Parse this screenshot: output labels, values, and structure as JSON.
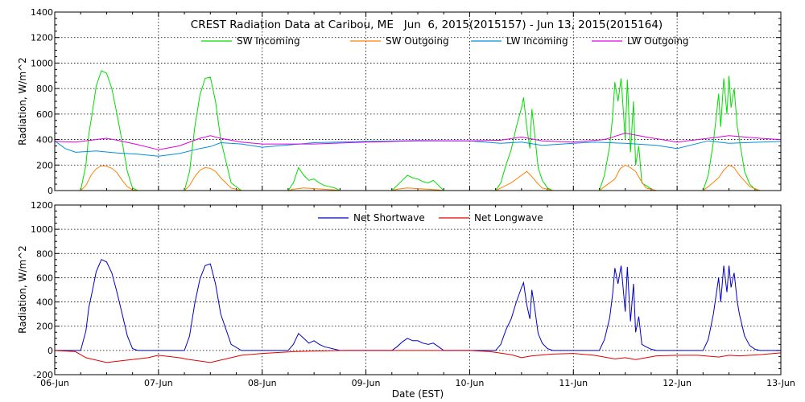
{
  "chart_data": [
    {
      "type": "line",
      "title": "CREST Radiation Data at Caribou, ME   Jun  6, 2015(2015157) - Jun 13, 2015(2015164)",
      "ylabel": "Radiation, W/m^2",
      "xlabel": "",
      "xlim": [
        0,
        7
      ],
      "ylim": [
        0,
        1400
      ],
      "yticks": [
        "0",
        "200",
        "400",
        "600",
        "800",
        "1000",
        "1200",
        "1400"
      ],
      "xtick_labels": [],
      "grid": true,
      "legend_placement": "top",
      "series": [
        {
          "name": "SW Incoming",
          "color": "#00dd00",
          "x": [
            0.0,
            0.25,
            0.3,
            0.33,
            0.36,
            0.4,
            0.45,
            0.5,
            0.55,
            0.6,
            0.65,
            0.7,
            0.75,
            0.8,
            1.0,
            1.25,
            1.3,
            1.35,
            1.4,
            1.45,
            1.5,
            1.55,
            1.6,
            1.7,
            1.8,
            2.0,
            2.25,
            2.3,
            2.35,
            2.4,
            2.45,
            2.5,
            2.55,
            2.6,
            2.65,
            2.7,
            2.75,
            3.0,
            3.25,
            3.3,
            3.35,
            3.4,
            3.45,
            3.5,
            3.55,
            3.6,
            3.65,
            3.7,
            3.75,
            4.0,
            4.25,
            4.3,
            4.35,
            4.4,
            4.45,
            4.5,
            4.52,
            4.55,
            4.58,
            4.6,
            4.63,
            4.66,
            4.7,
            4.75,
            4.8,
            5.0,
            5.25,
            5.3,
            5.35,
            5.38,
            5.4,
            5.43,
            5.46,
            5.5,
            5.52,
            5.55,
            5.58,
            5.6,
            5.63,
            5.66,
            5.7,
            5.75,
            5.8,
            6.0,
            6.25,
            6.3,
            6.35,
            6.38,
            6.4,
            6.42,
            6.45,
            6.48,
            6.5,
            6.52,
            6.55,
            6.58,
            6.6,
            6.65,
            6.7,
            6.75,
            6.8,
            6.85,
            7.0
          ],
          "y": [
            0,
            0,
            200,
            450,
            600,
            820,
            940,
            920,
            800,
            600,
            380,
            150,
            20,
            0,
            0,
            0,
            150,
            500,
            750,
            880,
            890,
            700,
            400,
            60,
            0,
            0,
            0,
            60,
            180,
            120,
            80,
            90,
            60,
            40,
            30,
            20,
            0,
            0,
            0,
            40,
            80,
            120,
            100,
            90,
            70,
            60,
            80,
            40,
            0,
            0,
            0,
            60,
            200,
            320,
            500,
            650,
            730,
            500,
            330,
            640,
            420,
            180,
            80,
            20,
            0,
            0,
            0,
            120,
            350,
            600,
            850,
            700,
            880,
            400,
            870,
            300,
            700,
            200,
            350,
            60,
            40,
            10,
            0,
            0,
            0,
            120,
            380,
            600,
            760,
            500,
            880,
            600,
            900,
            650,
            800,
            500,
            400,
            150,
            50,
            10,
            0,
            0,
            0
          ]
        },
        {
          "name": "SW Outgoing",
          "color": "#ff8000",
          "x": [
            0.0,
            0.25,
            0.3,
            0.35,
            0.4,
            0.45,
            0.5,
            0.55,
            0.6,
            0.65,
            0.7,
            0.75,
            0.8,
            1.0,
            1.25,
            1.3,
            1.35,
            1.4,
            1.45,
            1.5,
            1.55,
            1.6,
            1.7,
            1.8,
            2.0,
            2.25,
            2.3,
            2.4,
            2.5,
            2.6,
            2.7,
            2.75,
            3.0,
            3.25,
            3.3,
            3.4,
            3.5,
            3.6,
            3.7,
            3.75,
            4.0,
            4.25,
            4.3,
            4.4,
            4.5,
            4.55,
            4.6,
            4.65,
            4.7,
            4.8,
            5.0,
            5.25,
            5.3,
            5.4,
            5.45,
            5.5,
            5.55,
            5.6,
            5.65,
            5.7,
            5.8,
            6.0,
            6.25,
            6.3,
            6.4,
            6.45,
            6.5,
            6.55,
            6.6,
            6.7,
            6.8,
            7.0
          ],
          "y": [
            0,
            0,
            40,
            120,
            170,
            195,
            190,
            175,
            140,
            80,
            30,
            5,
            0,
            0,
            0,
            40,
            110,
            160,
            180,
            175,
            150,
            100,
            20,
            0,
            0,
            0,
            10,
            20,
            15,
            10,
            5,
            0,
            0,
            0,
            10,
            20,
            15,
            10,
            5,
            0,
            0,
            0,
            20,
            60,
            120,
            150,
            110,
            60,
            20,
            0,
            0,
            0,
            30,
            90,
            170,
            200,
            180,
            150,
            80,
            20,
            0,
            0,
            0,
            30,
            100,
            160,
            200,
            180,
            120,
            30,
            0,
            0
          ]
        },
        {
          "name": "LW Incoming",
          "color": "#0090e0",
          "x": [
            0.0,
            0.1,
            0.2,
            0.4,
            0.6,
            0.8,
            1.0,
            1.2,
            1.4,
            1.5,
            1.6,
            1.8,
            2.0,
            2.5,
            3.0,
            3.5,
            4.0,
            4.3,
            4.5,
            4.7,
            5.0,
            5.2,
            5.5,
            5.8,
            6.0,
            6.3,
            6.5,
            6.8,
            7.0
          ],
          "y": [
            390,
            330,
            300,
            310,
            295,
            285,
            270,
            290,
            330,
            345,
            375,
            365,
            340,
            375,
            385,
            392,
            390,
            370,
            380,
            355,
            370,
            380,
            370,
            355,
            330,
            390,
            370,
            380,
            385
          ]
        },
        {
          "name": "LW Outgoing",
          "color": "#e000e0",
          "x": [
            0.0,
            0.2,
            0.4,
            0.5,
            0.6,
            0.8,
            1.0,
            1.2,
            1.4,
            1.5,
            1.6,
            1.8,
            2.0,
            2.5,
            3.0,
            3.5,
            4.0,
            4.3,
            4.5,
            4.7,
            5.0,
            5.3,
            5.5,
            5.7,
            6.0,
            6.2,
            6.5,
            6.8,
            7.0
          ],
          "y": [
            385,
            380,
            400,
            410,
            395,
            360,
            320,
            350,
            410,
            430,
            410,
            380,
            365,
            365,
            380,
            390,
            390,
            395,
            420,
            390,
            380,
            400,
            450,
            420,
            380,
            400,
            430,
            410,
            400
          ]
        }
      ]
    },
    {
      "type": "line",
      "title": "",
      "ylabel": "Radiation, W/m^2",
      "xlabel": "Date (EST)",
      "xlim": [
        0,
        7
      ],
      "ylim": [
        -200,
        1200
      ],
      "yticks": [
        "-200",
        "0",
        "200",
        "400",
        "600",
        "800",
        "1000",
        "1200"
      ],
      "xtick_labels": [
        "06-Jun",
        "07-Jun",
        "08-Jun",
        "09-Jun",
        "10-Jun",
        "11-Jun",
        "12-Jun",
        "13-Jun"
      ],
      "grid": true,
      "legend_placement": "top",
      "series": [
        {
          "name": "Net Shortwave",
          "color": "#0000c8",
          "x": [
            0.0,
            0.25,
            0.3,
            0.33,
            0.36,
            0.4,
            0.45,
            0.5,
            0.55,
            0.6,
            0.65,
            0.7,
            0.75,
            0.8,
            1.0,
            1.25,
            1.3,
            1.35,
            1.4,
            1.45,
            1.5,
            1.55,
            1.6,
            1.7,
            1.8,
            2.0,
            2.25,
            2.3,
            2.35,
            2.4,
            2.45,
            2.5,
            2.55,
            2.6,
            2.65,
            2.7,
            2.75,
            3.0,
            3.25,
            3.3,
            3.35,
            3.4,
            3.45,
            3.5,
            3.55,
            3.6,
            3.65,
            3.7,
            3.75,
            4.0,
            4.25,
            4.3,
            4.35,
            4.4,
            4.45,
            4.5,
            4.52,
            4.55,
            4.58,
            4.6,
            4.63,
            4.66,
            4.7,
            4.75,
            4.8,
            5.0,
            5.25,
            5.3,
            5.35,
            5.38,
            5.4,
            5.43,
            5.46,
            5.5,
            5.52,
            5.55,
            5.58,
            5.6,
            5.63,
            5.66,
            5.7,
            5.75,
            5.8,
            6.0,
            6.25,
            6.3,
            6.35,
            6.38,
            6.4,
            6.42,
            6.45,
            6.48,
            6.5,
            6.52,
            6.55,
            6.58,
            6.6,
            6.65,
            6.7,
            6.75,
            6.8,
            6.85,
            7.0
          ],
          "y": [
            0,
            0,
            160,
            360,
            480,
            650,
            750,
            730,
            640,
            480,
            300,
            120,
            15,
            0,
            0,
            0,
            120,
            390,
            590,
            700,
            715,
            550,
            300,
            50,
            0,
            0,
            0,
            50,
            140,
            100,
            60,
            80,
            50,
            30,
            20,
            10,
            0,
            0,
            0,
            30,
            70,
            100,
            80,
            80,
            60,
            50,
            60,
            30,
            0,
            0,
            0,
            50,
            170,
            260,
            400,
            520,
            560,
            380,
            260,
            500,
            330,
            140,
            60,
            15,
            0,
            0,
            0,
            90,
            270,
            480,
            680,
            550,
            700,
            320,
            690,
            240,
            550,
            150,
            280,
            50,
            30,
            10,
            0,
            0,
            0,
            90,
            300,
            480,
            600,
            400,
            700,
            480,
            700,
            520,
            640,
            400,
            300,
            120,
            40,
            10,
            0,
            0,
            0
          ]
        },
        {
          "name": "Net Longwave",
          "color": "#e00000",
          "x": [
            0.0,
            0.2,
            0.3,
            0.5,
            0.7,
            0.9,
            1.0,
            1.2,
            1.3,
            1.5,
            1.7,
            1.8,
            2.0,
            2.3,
            2.5,
            2.8,
            3.0,
            3.5,
            4.0,
            4.2,
            4.4,
            4.5,
            4.6,
            4.8,
            5.0,
            5.2,
            5.4,
            5.5,
            5.6,
            5.8,
            6.0,
            6.2,
            6.4,
            6.5,
            6.6,
            6.8,
            7.0
          ],
          "y": [
            0,
            -10,
            -60,
            -100,
            -80,
            -60,
            -40,
            -60,
            -75,
            -100,
            -60,
            -40,
            -25,
            -10,
            -5,
            0,
            0,
            0,
            0,
            -10,
            -35,
            -60,
            -45,
            -30,
            -25,
            -40,
            -70,
            -60,
            -75,
            -45,
            -40,
            -40,
            -55,
            -40,
            -45,
            -35,
            -20
          ]
        }
      ]
    }
  ]
}
